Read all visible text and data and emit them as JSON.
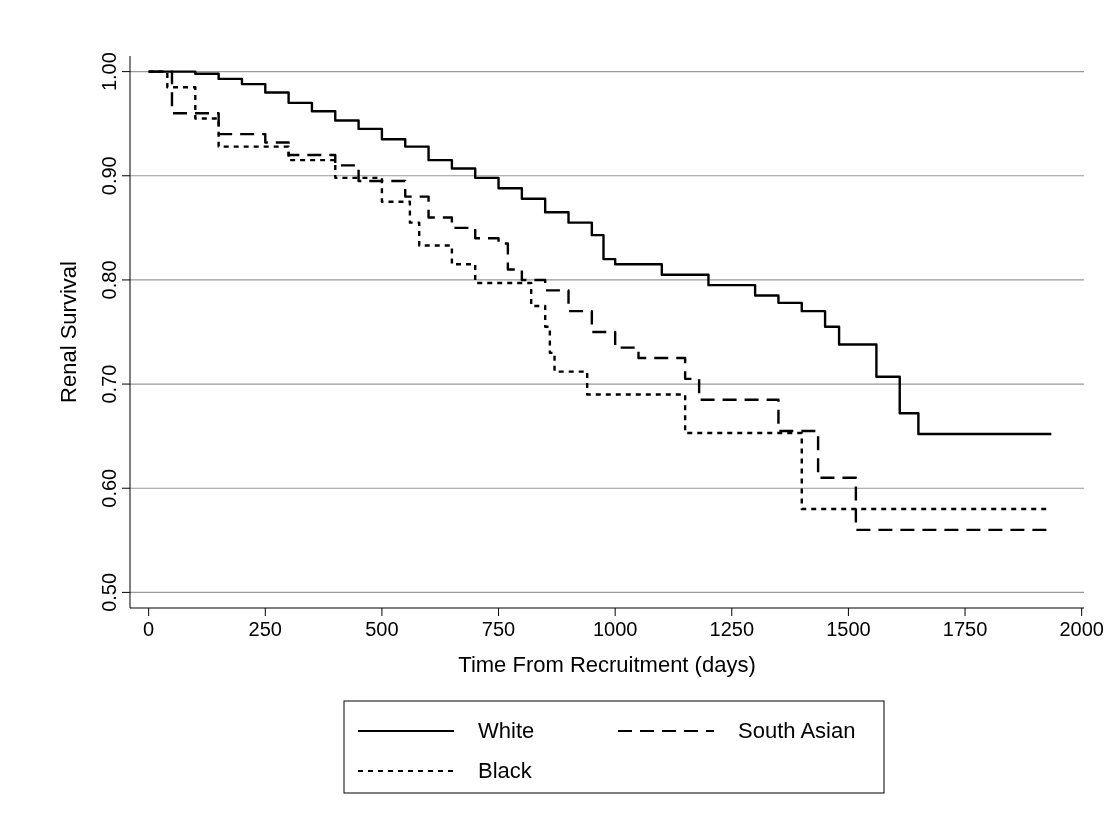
{
  "chart_data": {
    "type": "step",
    "xlabel": "Time From Recruitment (days)",
    "ylabel": "Renal Survival",
    "xlim": [
      -40,
      2005
    ],
    "xticks": [
      0,
      250,
      500,
      750,
      1000,
      1250,
      1500,
      1750,
      2000
    ],
    "ylim": [
      0.485,
      1.015
    ],
    "yticks": [
      {
        "value": 0.5,
        "label": "0.50"
      },
      {
        "value": 0.6,
        "label": "0.60"
      },
      {
        "value": 0.7,
        "label": "0.70"
      },
      {
        "value": 0.8,
        "label": "0.80"
      },
      {
        "value": 0.9,
        "label": "0.90"
      },
      {
        "value": 1.0,
        "label": "1.00"
      }
    ],
    "grid": "y",
    "legend": "bottom",
    "series": [
      {
        "name": "White",
        "color": "#000000",
        "line_style": "solid",
        "x": [
          0,
          100,
          150,
          200,
          250,
          300,
          350,
          400,
          450,
          500,
          550,
          600,
          650,
          700,
          750,
          800,
          850,
          900,
          950,
          975,
          1000,
          1100,
          1200,
          1300,
          1350,
          1400,
          1450,
          1480,
          1560,
          1610,
          1650,
          1935
        ],
        "values": [
          1.0,
          0.998,
          0.993,
          0.988,
          0.98,
          0.97,
          0.962,
          0.953,
          0.945,
          0.935,
          0.928,
          0.915,
          0.907,
          0.898,
          0.888,
          0.878,
          0.865,
          0.855,
          0.843,
          0.82,
          0.815,
          0.805,
          0.795,
          0.785,
          0.778,
          0.77,
          0.755,
          0.738,
          0.707,
          0.672,
          0.652,
          0.652
        ]
      },
      {
        "name": "South Asian",
        "color": "#000000",
        "line_style": "dashed",
        "x": [
          0,
          50,
          150,
          250,
          300,
          400,
          450,
          550,
          600,
          650,
          700,
          750,
          770,
          800,
          850,
          900,
          950,
          1000,
          1050,
          1150,
          1180,
          1350,
          1435,
          1516,
          1930
        ],
        "values": [
          1.0,
          0.96,
          0.94,
          0.932,
          0.92,
          0.91,
          0.895,
          0.88,
          0.86,
          0.85,
          0.84,
          0.835,
          0.81,
          0.8,
          0.79,
          0.77,
          0.75,
          0.735,
          0.725,
          0.705,
          0.685,
          0.655,
          0.61,
          0.56,
          0.56
        ]
      },
      {
        "name": "Black",
        "color": "#000000",
        "line_style": "dotted",
        "x": [
          0,
          40,
          100,
          150,
          300,
          400,
          500,
          560,
          580,
          650,
          700,
          820,
          850,
          860,
          870,
          940,
          1150,
          1400,
          1930
        ],
        "values": [
          1.0,
          0.985,
          0.955,
          0.928,
          0.915,
          0.898,
          0.875,
          0.855,
          0.833,
          0.815,
          0.797,
          0.775,
          0.755,
          0.73,
          0.712,
          0.69,
          0.653,
          0.58,
          0.58
        ]
      }
    ]
  }
}
